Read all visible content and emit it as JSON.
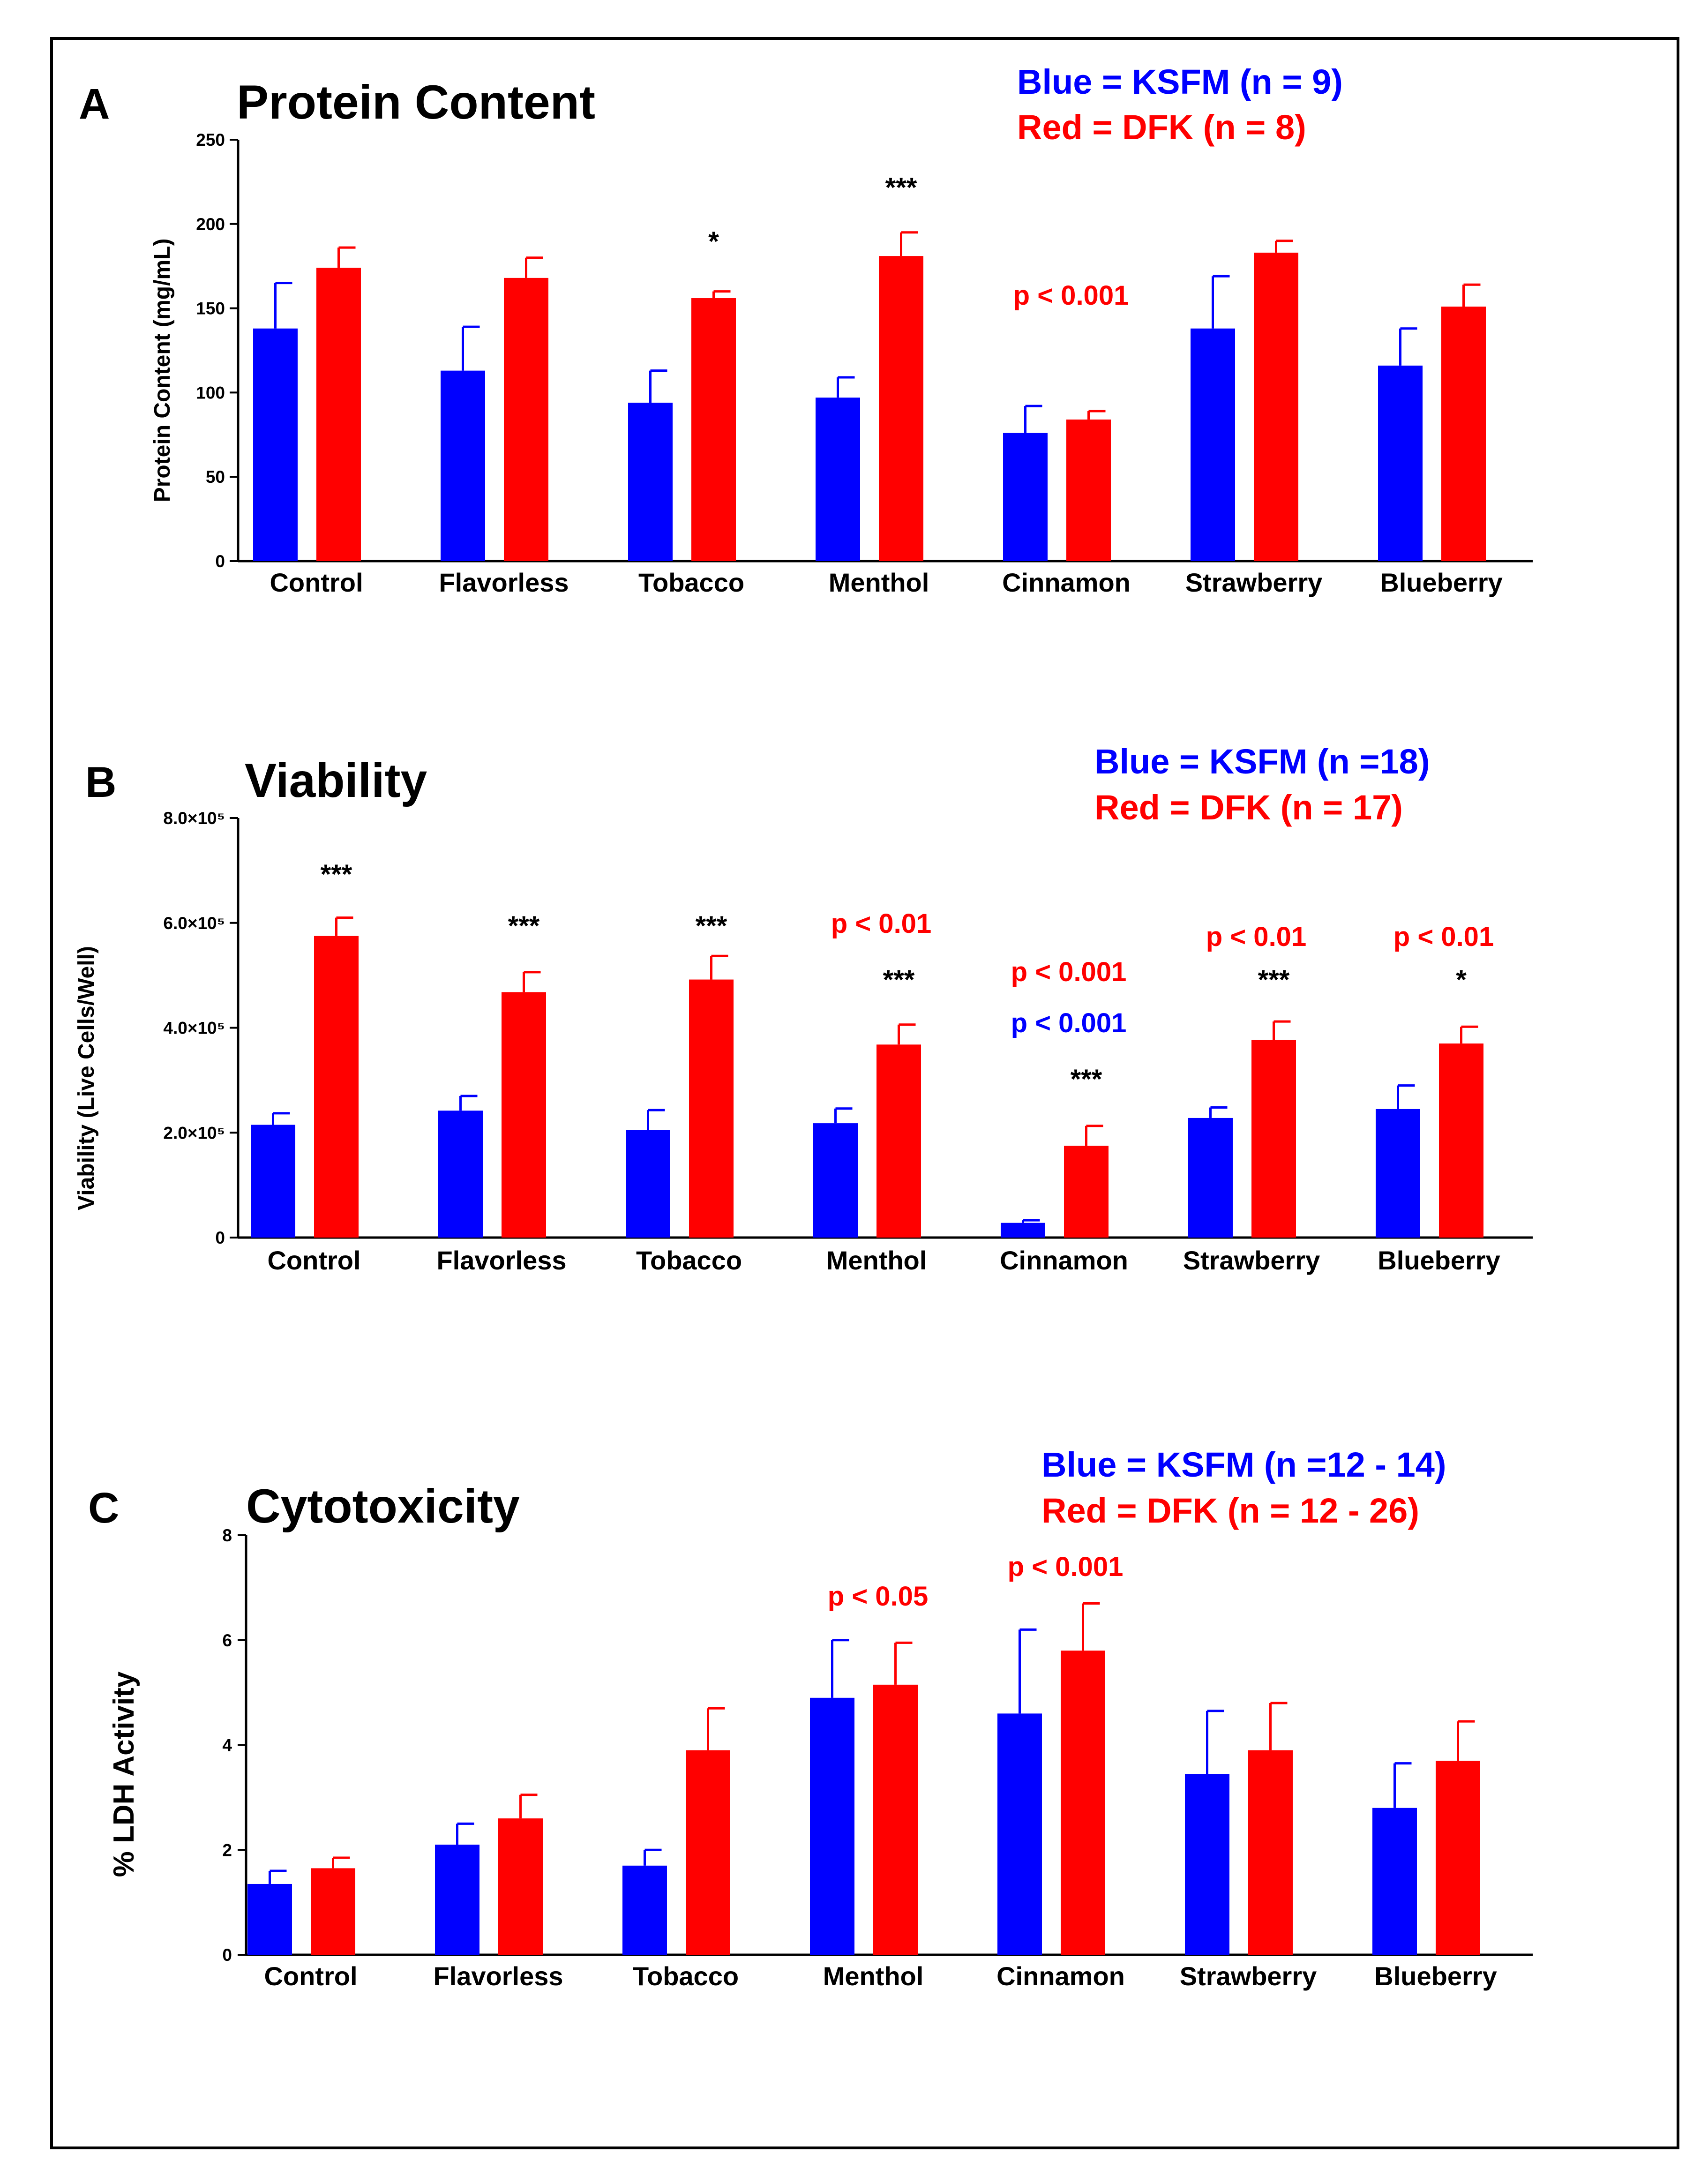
{
  "colors": {
    "ksfm": "#0000ff",
    "dfk": "#ff0000",
    "axis": "#000000",
    "frame": "#000000"
  },
  "chart_data": [
    {
      "panel": "A",
      "type": "bar",
      "title": "Protein Content",
      "ylabel": "Protein Content (mg/mL)",
      "xlabel": "",
      "ylim": [
        0,
        250
      ],
      "yticks": [
        "0",
        "50",
        "100",
        "150",
        "200",
        "250"
      ],
      "categories": [
        "Control",
        "Flavorless",
        "Tobacco",
        "Menthol",
        "Cinnamon",
        "Strawberry",
        "Blueberry"
      ],
      "legend": [
        "Blue = KSFM (n = 9)",
        "Red = DFK (n = 8)"
      ],
      "series": [
        {
          "name": "KSFM",
          "color": "#0000ff",
          "values": [
            138,
            113,
            94,
            97,
            76,
            138,
            116
          ],
          "error": [
            27,
            26,
            19,
            12,
            16,
            31,
            22
          ]
        },
        {
          "name": "DFK",
          "color": "#ff0000",
          "values": [
            174,
            168,
            156,
            181,
            84,
            183,
            151
          ],
          "error": [
            12,
            12,
            4,
            14,
            5,
            7,
            13
          ]
        }
      ],
      "annotations": [
        {
          "text": "*",
          "category": 2,
          "series": 1,
          "color": "#000000"
        },
        {
          "text": "***",
          "category": 3,
          "series": 1,
          "color": "#000000"
        },
        {
          "text": "p < 0.001",
          "category": 4,
          "series": null,
          "color": "#ff0000"
        }
      ]
    },
    {
      "panel": "B",
      "type": "bar",
      "title": "Viability",
      "ylabel": "Viability (Live Cells/Well)",
      "xlabel": "",
      "ylim": [
        0,
        800000
      ],
      "yticks": [
        "0",
        "2.0×10⁵",
        "4.0×10⁵",
        "6.0×10⁵",
        "8.0×10⁵"
      ],
      "categories": [
        "Control",
        "Flavorless",
        "Tobacco",
        "Menthol",
        "Cinnamon",
        "Strawberry",
        "Blueberry"
      ],
      "legend": [
        "Blue = KSFM (n =18)",
        "Red = DFK (n = 17)"
      ],
      "series": [
        {
          "name": "KSFM",
          "color": "#0000ff",
          "values": [
            215000,
            242000,
            205000,
            218000,
            28000,
            228000,
            245000
          ],
          "error": [
            22000,
            28000,
            38000,
            28000,
            5000,
            20000,
            45000
          ]
        },
        {
          "name": "DFK",
          "color": "#ff0000",
          "values": [
            575000,
            468000,
            492000,
            368000,
            175000,
            377000,
            370000
          ],
          "error": [
            35000,
            38000,
            45000,
            38000,
            38000,
            35000,
            32000
          ]
        }
      ],
      "annotations": [
        {
          "text": "***",
          "category": 0,
          "color": "#000000"
        },
        {
          "text": "***",
          "category": 1,
          "color": "#000000"
        },
        {
          "text": "***",
          "category": 2,
          "color": "#000000"
        },
        {
          "text": "p < 0.01",
          "category": 3,
          "color": "#ff0000"
        },
        {
          "text": "***",
          "category": 3,
          "color": "#000000"
        },
        {
          "text": "p < 0.001",
          "category": 4,
          "color": "#ff0000"
        },
        {
          "text": "p < 0.001",
          "category": 4,
          "color": "#0000ff"
        },
        {
          "text": "***",
          "category": 4,
          "color": "#000000"
        },
        {
          "text": "p < 0.01",
          "category": 5,
          "color": "#ff0000"
        },
        {
          "text": "***",
          "category": 5,
          "color": "#000000"
        },
        {
          "text": "p < 0.01",
          "category": 6,
          "color": "#ff0000"
        },
        {
          "text": "*",
          "category": 6,
          "color": "#000000"
        }
      ]
    },
    {
      "panel": "C",
      "type": "bar",
      "title": "Cytotoxicity",
      "ylabel": "% LDH Activity",
      "xlabel": "",
      "ylim": [
        0,
        8
      ],
      "yticks": [
        "0",
        "2",
        "4",
        "6",
        "8"
      ],
      "categories": [
        "Control",
        "Flavorless",
        "Tobacco",
        "Menthol",
        "Cinnamon",
        "Strawberry",
        "Blueberry"
      ],
      "legend": [
        "Blue = KSFM (n =12 - 14)",
        "Red = DFK (n = 12 - 26)"
      ],
      "series": [
        {
          "name": "KSFM",
          "color": "#0000ff",
          "values": [
            1.35,
            2.1,
            1.7,
            4.9,
            4.6,
            3.45,
            2.8
          ],
          "error": [
            0.25,
            0.4,
            0.3,
            1.1,
            1.6,
            1.2,
            0.85
          ]
        },
        {
          "name": "DFK",
          "color": "#ff0000",
          "values": [
            1.65,
            2.6,
            3.9,
            5.15,
            5.8,
            3.9,
            3.7
          ],
          "error": [
            0.2,
            0.45,
            0.8,
            0.8,
            0.9,
            0.9,
            0.75
          ]
        }
      ],
      "annotations": [
        {
          "text": "p < 0.05",
          "category": 3,
          "color": "#ff0000"
        },
        {
          "text": "p < 0.001",
          "category": 4,
          "color": "#ff0000"
        }
      ]
    }
  ]
}
